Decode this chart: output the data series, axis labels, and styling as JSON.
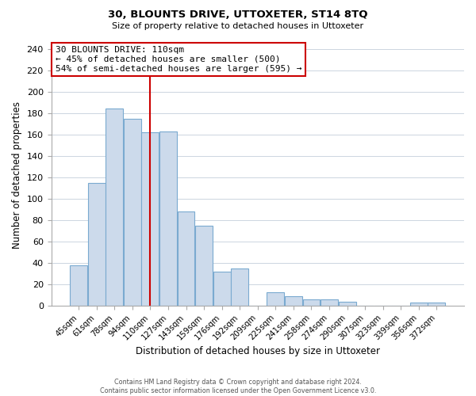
{
  "title": "30, BLOUNTS DRIVE, UTTOXETER, ST14 8TQ",
  "subtitle": "Size of property relative to detached houses in Uttoxeter",
  "xlabel": "Distribution of detached houses by size in Uttoxeter",
  "ylabel": "Number of detached properties",
  "categories": [
    "45sqm",
    "61sqm",
    "78sqm",
    "94sqm",
    "110sqm",
    "127sqm",
    "143sqm",
    "159sqm",
    "176sqm",
    "192sqm",
    "209sqm",
    "225sqm",
    "241sqm",
    "258sqm",
    "274sqm",
    "290sqm",
    "307sqm",
    "323sqm",
    "339sqm",
    "356sqm",
    "372sqm"
  ],
  "values": [
    38,
    115,
    184,
    175,
    162,
    163,
    88,
    75,
    32,
    35,
    0,
    13,
    9,
    6,
    6,
    4,
    0,
    0,
    0,
    3,
    3
  ],
  "bar_color": "#ccdaeb",
  "bar_edge_color": "#7aaad0",
  "vline_x_idx": 4,
  "vline_color": "#cc0000",
  "annotation_title": "30 BLOUNTS DRIVE: 110sqm",
  "annotation_line1": "← 45% of detached houses are smaller (500)",
  "annotation_line2": "54% of semi-detached houses are larger (595) →",
  "annotation_box_color": "#ffffff",
  "annotation_box_edge_color": "#cc0000",
  "ylim": [
    0,
    245
  ],
  "yticks": [
    0,
    20,
    40,
    60,
    80,
    100,
    120,
    140,
    160,
    180,
    200,
    220,
    240
  ],
  "footer_line1": "Contains HM Land Registry data © Crown copyright and database right 2024.",
  "footer_line2": "Contains public sector information licensed under the Open Government Licence v3.0.",
  "bg_color": "#ffffff",
  "grid_color": "#ccd5e0"
}
